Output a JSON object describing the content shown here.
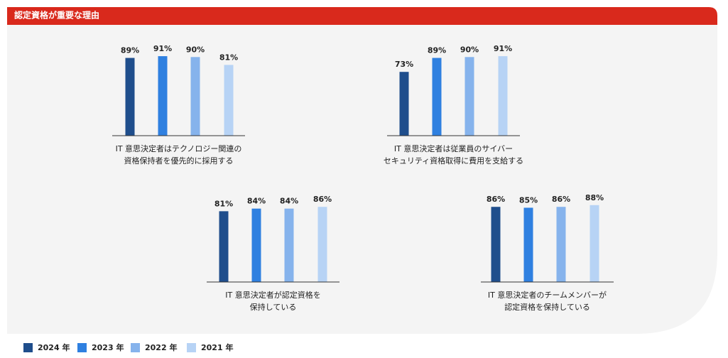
{
  "header": {
    "title": "認定資格が重要な理由"
  },
  "chart_data": [
    {
      "type": "bar",
      "caption": [
        "IT 意思決定者はテクノロジー関連の",
        "資格保持者を優先的に採用する"
      ],
      "series": [
        {
          "name": "2024 年",
          "color": "#1f4e8c",
          "values": [
            89
          ],
          "value_labels": [
            "89%"
          ]
        },
        {
          "name": "2023 年",
          "color": "#2f80e0",
          "values": [
            91
          ],
          "value_labels": [
            "91%"
          ]
        },
        {
          "name": "2022 年",
          "color": "#86b3ec",
          "values": [
            90
          ],
          "value_labels": [
            "90%"
          ]
        },
        {
          "name": "2021 年",
          "color": "#b7d3f5",
          "values": [
            81
          ],
          "value_labels": [
            "81%"
          ]
        }
      ]
    },
    {
      "type": "bar",
      "caption": [
        "IT 意思決定者は従業員のサイバー",
        "セキュリティ資格取得に費用を支給する"
      ],
      "series": [
        {
          "name": "2024 年",
          "color": "#1f4e8c",
          "values": [
            73
          ],
          "value_labels": [
            "73%"
          ]
        },
        {
          "name": "2023 年",
          "color": "#2f80e0",
          "values": [
            89
          ],
          "value_labels": [
            "89%"
          ]
        },
        {
          "name": "2022 年",
          "color": "#86b3ec",
          "values": [
            90
          ],
          "value_labels": [
            "90%"
          ]
        },
        {
          "name": "2021 年",
          "color": "#b7d3f5",
          "values": [
            91
          ],
          "value_labels": [
            "91%"
          ]
        }
      ]
    },
    {
      "type": "bar",
      "caption": [
        "IT 意思決定者が認定資格を",
        "保持している"
      ],
      "series": [
        {
          "name": "2024 年",
          "color": "#1f4e8c",
          "values": [
            81
          ],
          "value_labels": [
            "81%"
          ]
        },
        {
          "name": "2023 年",
          "color": "#2f80e0",
          "values": [
            84
          ],
          "value_labels": [
            "84%"
          ]
        },
        {
          "name": "2022 年",
          "color": "#86b3ec",
          "values": [
            84
          ],
          "value_labels": [
            "84%"
          ]
        },
        {
          "name": "2021 年",
          "color": "#b7d3f5",
          "values": [
            86
          ],
          "value_labels": [
            "86%"
          ]
        }
      ]
    },
    {
      "type": "bar",
      "caption": [
        "IT 意思決定者のチームメンバーが",
        "認定資格を保持している"
      ],
      "series": [
        {
          "name": "2024 年",
          "color": "#1f4e8c",
          "values": [
            86
          ],
          "value_labels": [
            "86%"
          ]
        },
        {
          "name": "2023 年",
          "color": "#2f80e0",
          "values": [
            85
          ],
          "value_labels": [
            "85%"
          ]
        },
        {
          "name": "2022 年",
          "color": "#86b3ec",
          "values": [
            86
          ],
          "value_labels": [
            "86%"
          ]
        },
        {
          "name": "2021 年",
          "color": "#b7d3f5",
          "values": [
            88
          ],
          "value_labels": [
            "88%"
          ]
        }
      ]
    }
  ]
}
